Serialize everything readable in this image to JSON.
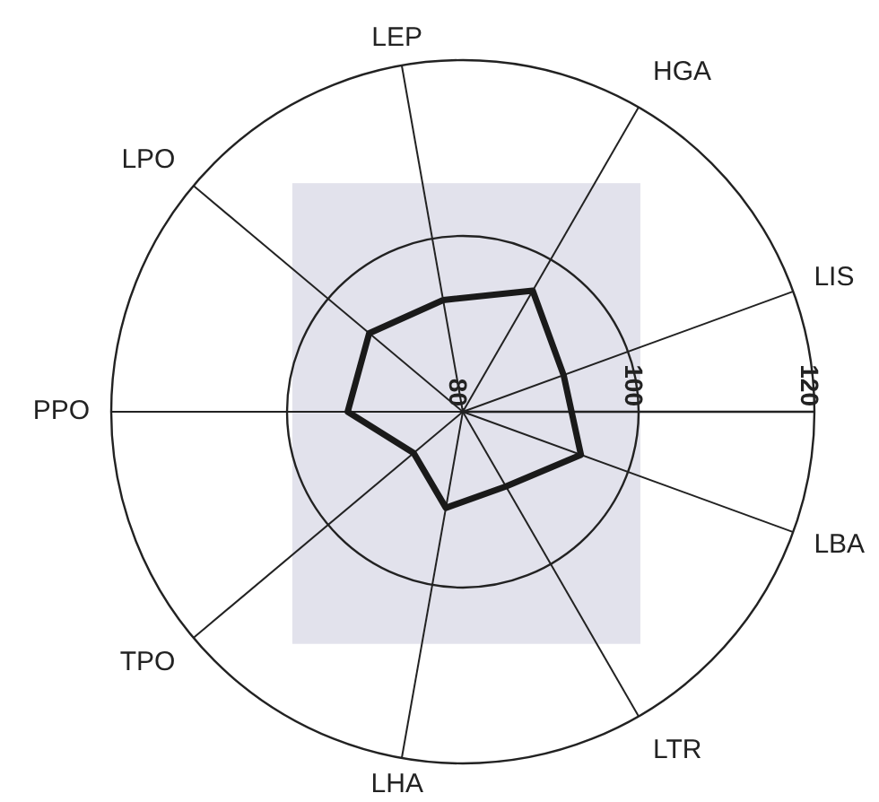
{
  "chart_data": {
    "type": "radar",
    "categories": [
      "LEP",
      "HGA",
      "LIS",
      "LBA",
      "LTR",
      "LHA",
      "TPO",
      "PPO",
      "LPO"
    ],
    "series": [
      {
        "color": "#1a1a1a",
        "values": [
          92.9,
          95.9,
          92.2,
          94.3,
          89.8,
          91.1,
          87.3,
          93.1,
          93.9
        ]
      }
    ],
    "ylim": [
      80,
      120
    ],
    "yticks": [
      80,
      100,
      120
    ],
    "grid": true,
    "marker": "none",
    "line_style": "solid"
  }
}
